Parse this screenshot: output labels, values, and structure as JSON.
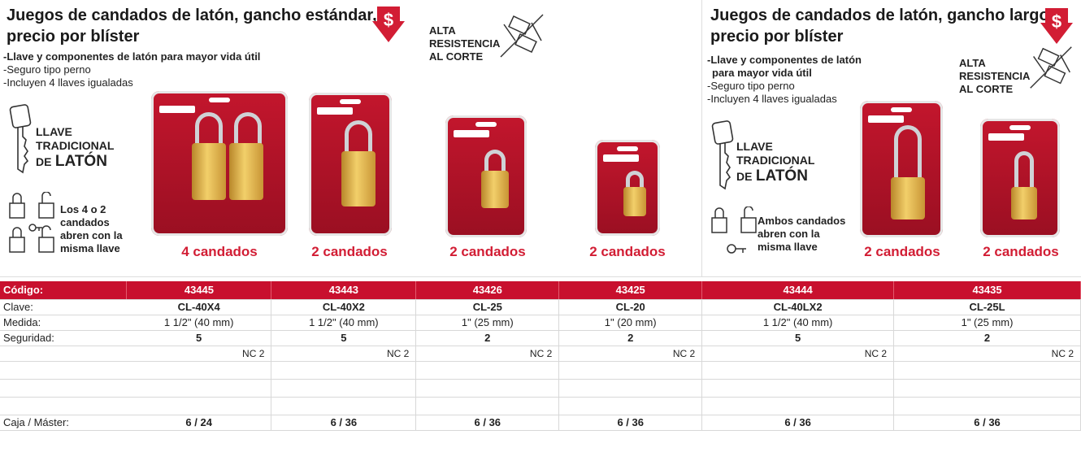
{
  "left": {
    "title_part1": "Juegos de candados de latón, ",
    "title_bold": "gancho estándar,",
    "title_line2": "precio por blíster",
    "bullets": [
      "-Llave y componentes de latón para mayor vida útil",
      "-Seguro tipo perno",
      "-Incluyen 4 llaves igualadas"
    ],
    "cut_lines": [
      "ALTA",
      "RESISTENCIA",
      "AL CORTE"
    ],
    "key_lines": [
      "LLAVE",
      "TRADICIONAL",
      "DE",
      "LATÓN"
    ],
    "lock_note": [
      "Los 4 o 2",
      "candados",
      "abren con la",
      "misma llave"
    ],
    "packs": [
      "4 candados",
      "2 candados",
      "2 candados",
      "2 candados"
    ]
  },
  "right": {
    "title_part1": "Juegos de candados de latón, ",
    "title_bold": "gancho largo,",
    "title_line2": "precio por blíster",
    "bullets": [
      "-Llave y componentes de latón",
      "para mayor vida útil",
      "-Seguro tipo perno",
      "-Incluyen 4 llaves igualadas"
    ],
    "cut_lines": [
      "ALTA",
      "RESISTENCIA",
      "AL CORTE"
    ],
    "key_lines": [
      "LLAVE",
      "TRADICIONAL",
      "DE",
      "LATÓN"
    ],
    "lock_note": [
      "Ambos candados",
      "abren con la",
      "misma llave"
    ],
    "packs": [
      "2 candados",
      "2 candados"
    ]
  },
  "price_symbol": "$",
  "brand_color": "#c8102e",
  "table": {
    "header_label": "Código:",
    "codes": [
      "43445",
      "43443",
      "43426",
      "43425",
      "43444",
      "43435"
    ],
    "rows": [
      {
        "label": "Clave:",
        "values": [
          "CL-40X4",
          "CL-40X2",
          "CL-25",
          "CL-20",
          "CL-40LX2",
          "CL-25L"
        ],
        "bold": true
      },
      {
        "label": "Medida:",
        "values": [
          "1 1/2\" (40 mm)",
          "1 1/2\" (40 mm)",
          "1\" (25 mm)",
          "1\" (20 mm)",
          "1 1/2\" (40 mm)",
          "1\" (25 mm)"
        ],
        "bold": false
      },
      {
        "label": "Seguridad:",
        "values": [
          "5",
          "5",
          "2",
          "2",
          "5",
          "2"
        ],
        "bold": true
      }
    ],
    "nc_values": [
      "NC 2",
      "NC 2",
      "NC 2",
      "NC 2",
      "NC 2",
      "NC 2"
    ],
    "box_label": "Caja / Máster:",
    "box_values": [
      "6 / 24",
      "6 / 36",
      "6 / 36",
      "6 / 36",
      "6 / 36",
      "6 / 36"
    ]
  }
}
